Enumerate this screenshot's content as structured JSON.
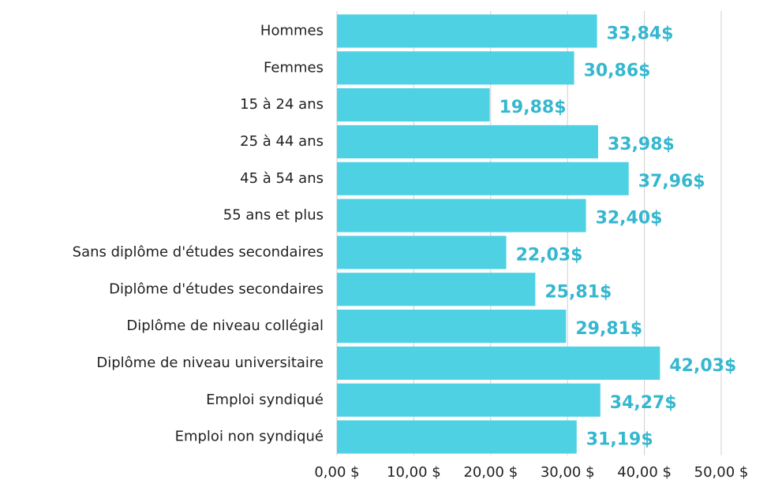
{
  "chart_data": {
    "type": "hbar",
    "categories": [
      "Hommes",
      "Femmes",
      "15 à 24 ans",
      "25 à 44 ans",
      "45 à 54 ans",
      "55 ans et plus",
      "Sans diplôme d'études secondaires",
      "Diplôme d'études secondaires",
      "Diplôme de niveau collégial",
      "Diplôme de niveau universitaire",
      "Emploi syndiqué",
      "Emploi non syndiqué"
    ],
    "values": [
      33.84,
      30.86,
      19.88,
      33.98,
      37.96,
      32.4,
      22.03,
      25.81,
      29.81,
      42.03,
      34.27,
      31.19
    ],
    "value_labels": [
      "33,84$",
      "30,86$",
      "19,88$",
      "33,98$",
      "37,96$",
      "32,40$",
      "22,03$",
      "25,81$",
      "29,81$",
      "42,03$",
      "34,27$",
      "31,19$"
    ],
    "color": "#4fd1e4",
    "label_color": "#35b7cf",
    "xlim": [
      0,
      50
    ],
    "xticks": [
      {
        "value": 0,
        "label": "0,00 $"
      },
      {
        "value": 10,
        "label": "10,00 $"
      },
      {
        "value": 20,
        "label": "20,00 $"
      },
      {
        "value": 30,
        "label": "30,00 $"
      },
      {
        "value": 40,
        "label": "40,00 $"
      },
      {
        "value": 50,
        "label": "50,00 $"
      }
    ],
    "grid": true
  }
}
